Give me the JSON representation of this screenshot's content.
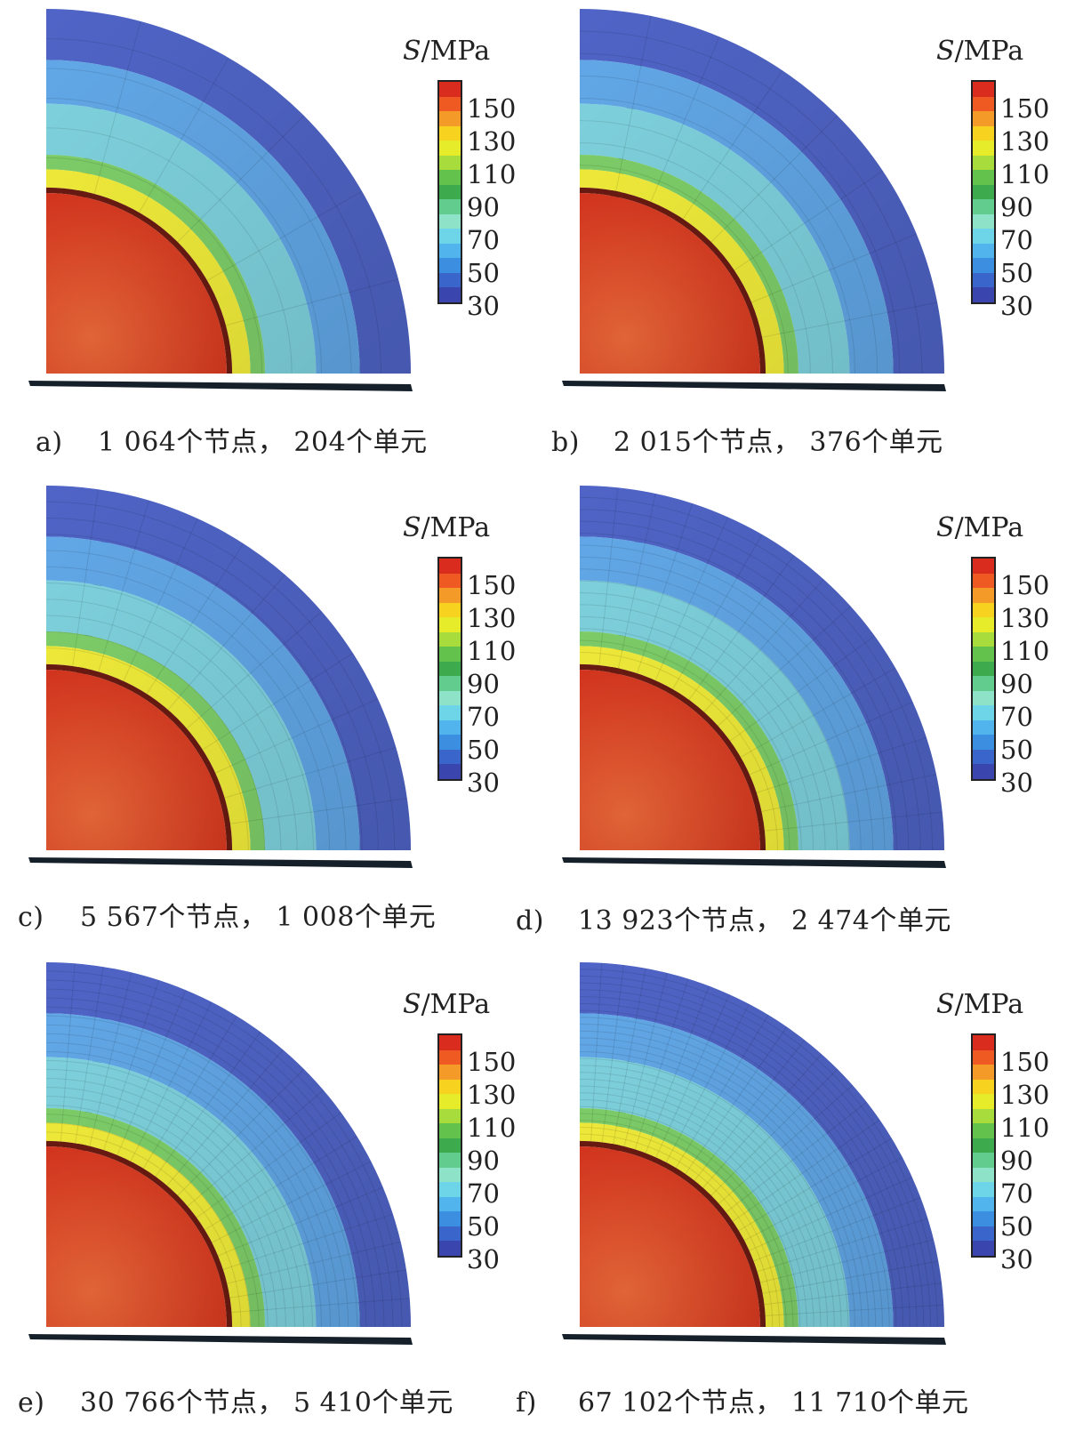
{
  "legend": {
    "symbol": "S",
    "unit": "/MPa",
    "ticks": [
      "150",
      "130",
      "110",
      "90",
      "70",
      "50",
      "30"
    ],
    "band_colors": [
      "#d92b1e",
      "#ee5a22",
      "#f49a28",
      "#f7d21e",
      "#e6ec2a",
      "#a8dc3c",
      "#62c24c",
      "#3eaa4e",
      "#62cc8e",
      "#8ee2c8",
      "#6ed4e8",
      "#52b4ec",
      "#3c8ee0",
      "#3a66cc",
      "#3a46ae"
    ]
  },
  "scale": {
    "colors": {
      "core": "#d8371f",
      "core_highlight": "#ee6a3a",
      "yellow_band": "#f3ee3a",
      "green_band": "#7fd06a",
      "cyan_zone": "#7fd3df",
      "blue_zone": "#62a8e8",
      "outer_shell": "#4f64c6",
      "dark_face": "#15202a"
    }
  },
  "panels": [
    {
      "id": "a",
      "label": "a)",
      "caption": "1 064个节点， 204个单元"
    },
    {
      "id": "b",
      "label": "b)",
      "caption": "2 015个节点， 376个单元"
    },
    {
      "id": "c",
      "label": "c)",
      "caption": "5 567个节点， 1 008个单元"
    },
    {
      "id": "d",
      "label": "d)",
      "caption": "13 923个节点， 2 474个单元"
    },
    {
      "id": "e",
      "label": "e)",
      "caption": "30 766个节点， 5 410个单元"
    },
    {
      "id": "f",
      "label": "f)",
      "caption": "67 102个节点， 11 710个单元"
    }
  ]
}
